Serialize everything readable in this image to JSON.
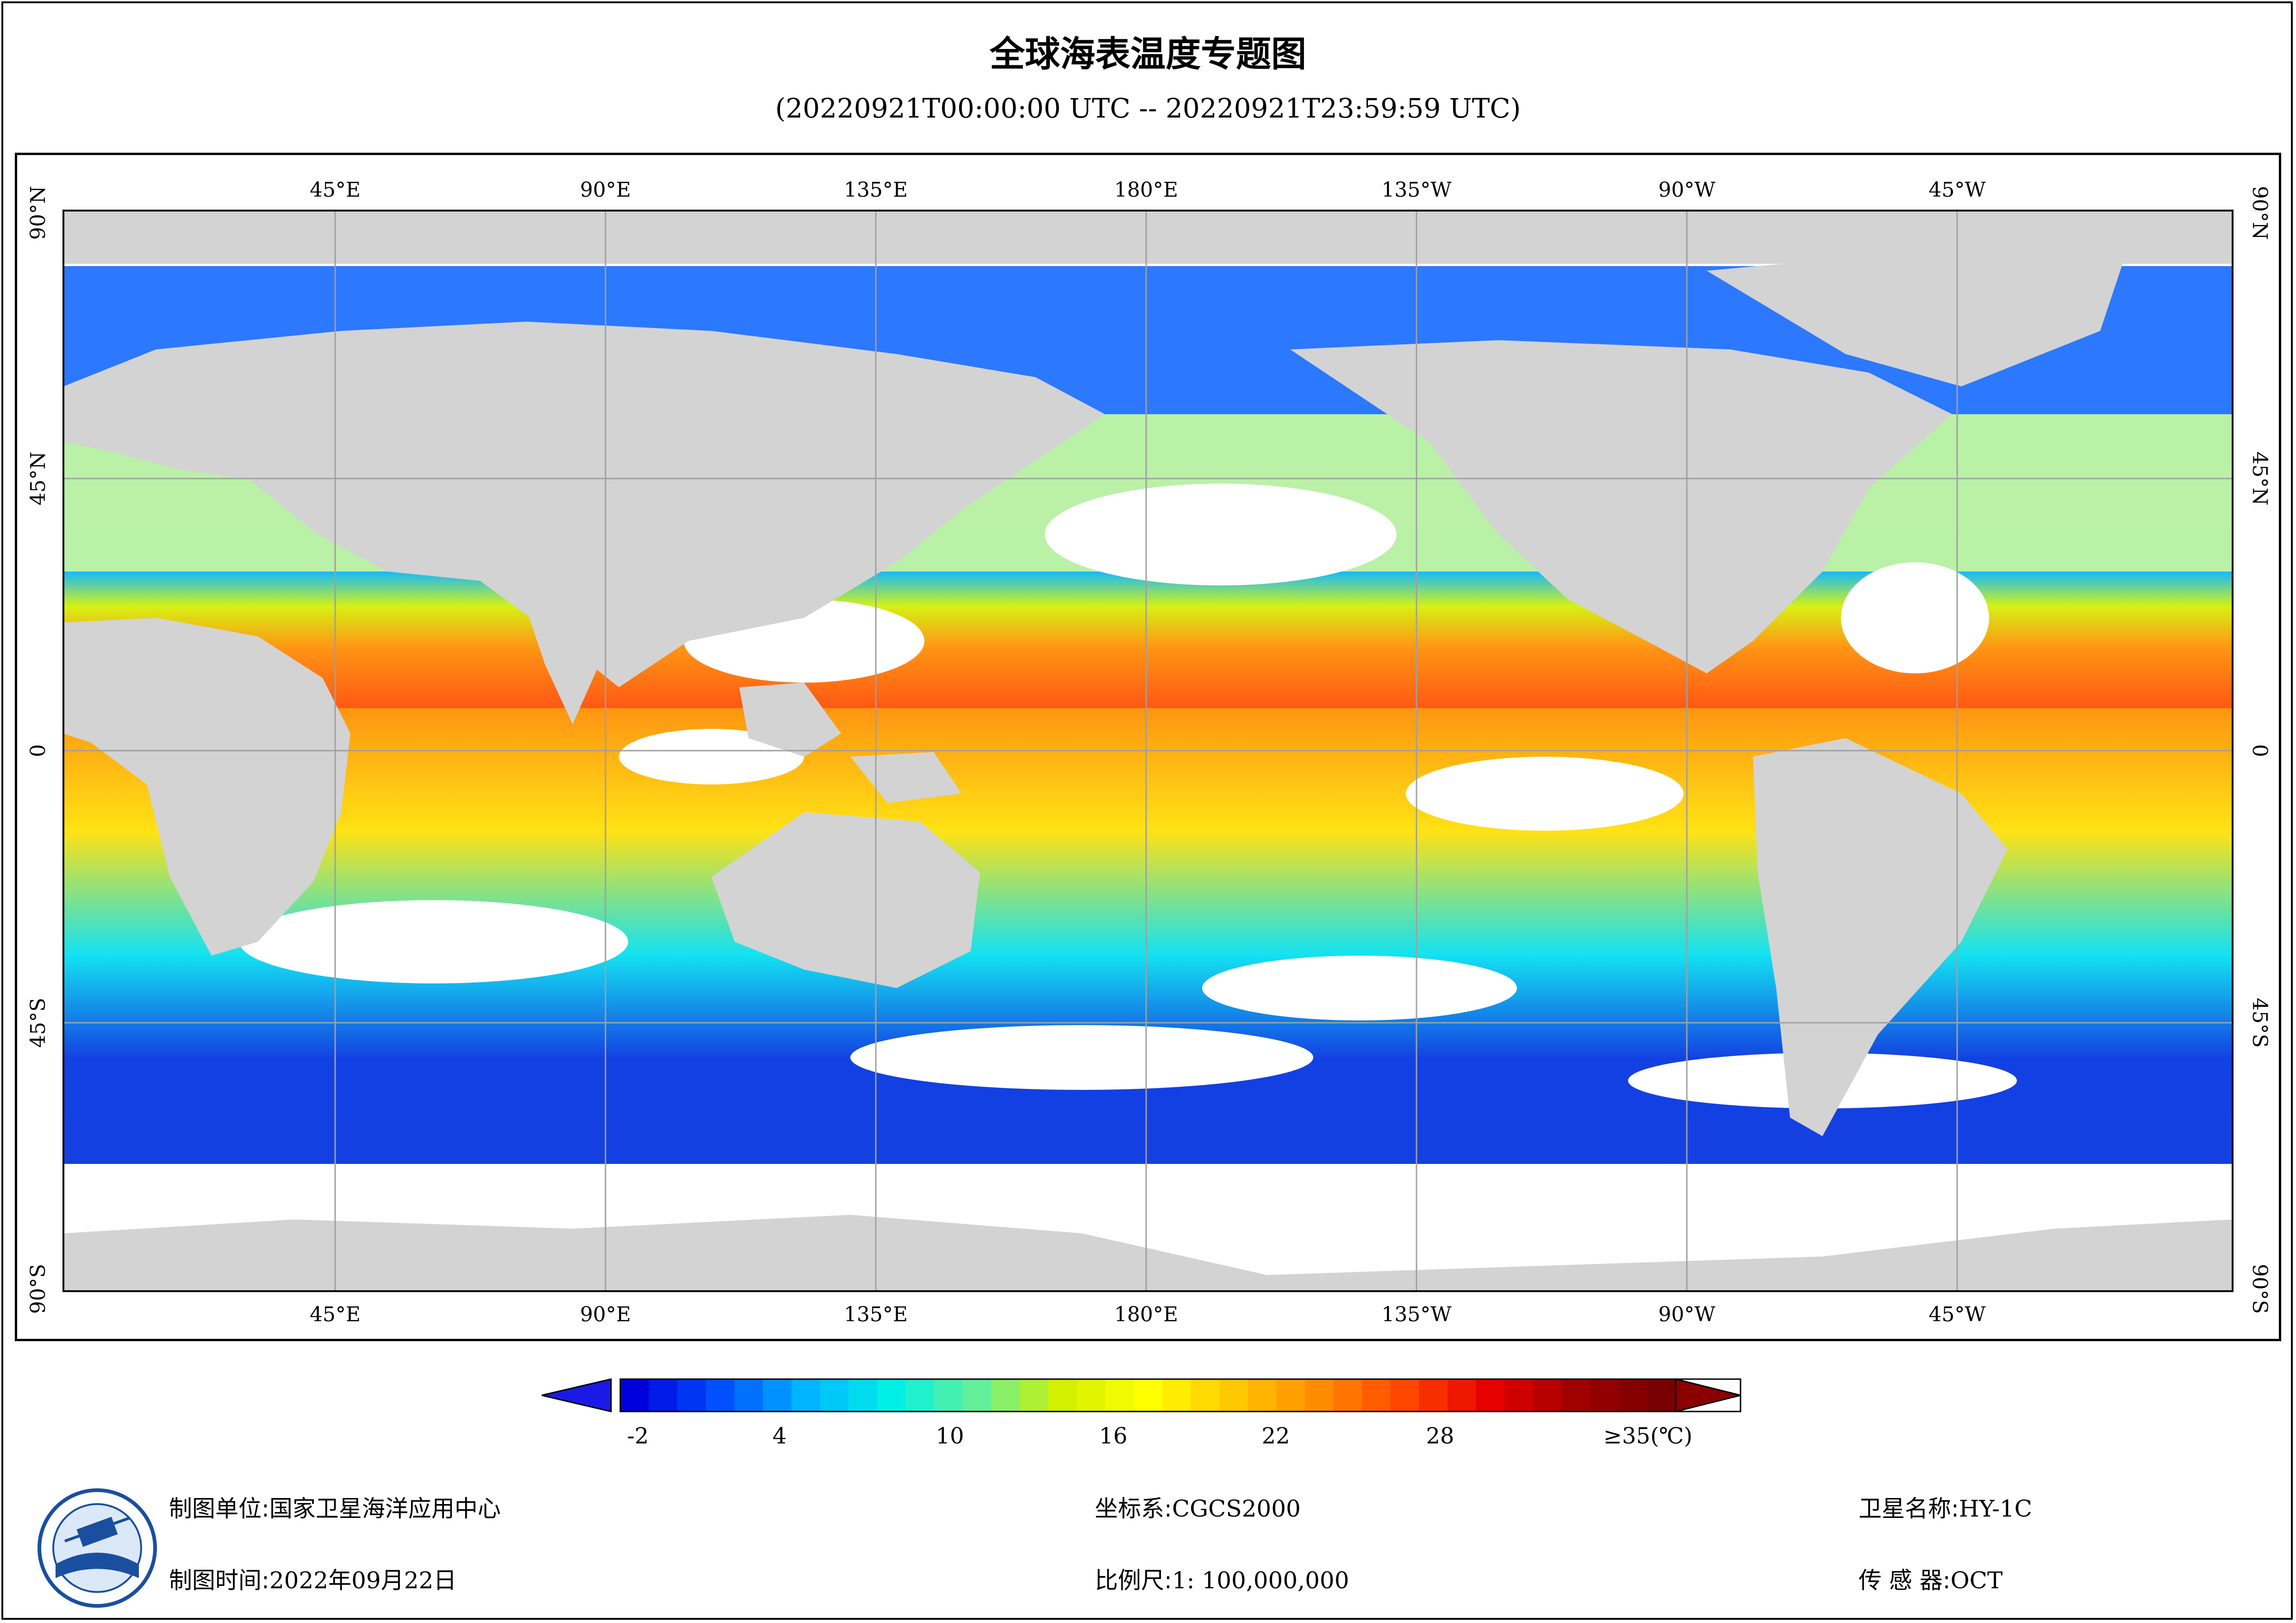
{
  "title": "全球海表温度专题图",
  "subtitle": "(20220921T00:00:00 UTC -- 20220921T23:59:59 UTC)",
  "map": {
    "lon_labels_top": [
      "45°E",
      "90°E",
      "135°E",
      "180°E",
      "135°W",
      "90°W",
      "45°W"
    ],
    "lon_labels_bottom": [
      "45°E",
      "90°E",
      "135°E",
      "180°E",
      "135°W",
      "90°W",
      "45°W"
    ],
    "lat_labels": [
      "90°N",
      "45°N",
      "0",
      "45°S",
      "90°S"
    ],
    "colors": {
      "land": "#d3d3d3",
      "ocean_nodata": "#ffffff",
      "grid": "#a0a0a0"
    }
  },
  "colorbar": {
    "ticks": [
      "-2",
      "4",
      "10",
      "16",
      "22",
      "28",
      "≥35(℃)"
    ],
    "min": -2,
    "max": 35,
    "colors": [
      "#0000dc",
      "#0050ff",
      "#00b4ff",
      "#00f0e6",
      "#64f09b",
      "#d2f000",
      "#ffff00",
      "#ffc800",
      "#ff8c00",
      "#ff4600",
      "#e60000",
      "#a00000",
      "#780000"
    ]
  },
  "footer": {
    "org_label": "制图单位:",
    "org_value": "国家卫星海洋应用中心",
    "time_label": "制图时间:",
    "time_value": "2022年09月22日",
    "crs_label": "坐标系:",
    "crs_value": "CGCS2000",
    "scale_label": "比例尺:",
    "scale_value": "1: 100,000,000",
    "sat_label": "卫星名称:",
    "sat_value": "HY-1C",
    "sensor_label": "传 感 器:",
    "sensor_value": "OCT"
  }
}
